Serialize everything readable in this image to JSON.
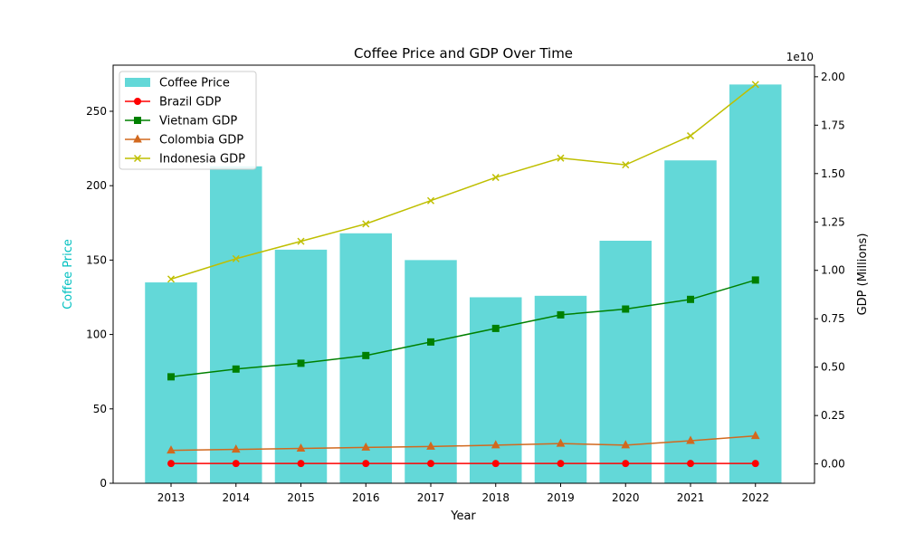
{
  "chart_data": {
    "type": "bar",
    "title": "Coffee Price and GDP Over Time",
    "xlabel": "Year",
    "ylabel_left": "Coffee Price",
    "ylabel_right": "GDP (Millions)",
    "right_axis_multiplier": "1e10",
    "categories": [
      "2013",
      "2014",
      "2015",
      "2016",
      "2017",
      "2018",
      "2019",
      "2020",
      "2021",
      "2022"
    ],
    "ylim_left": [
      0,
      281
    ],
    "left_ticks": [
      0,
      50,
      100,
      150,
      200,
      250
    ],
    "ylim_right": [
      -0.1,
      2.06
    ],
    "right_ticks": [
      "0.00",
      "0.25",
      "0.50",
      "0.75",
      "1.00",
      "1.25",
      "1.50",
      "1.75",
      "2.00"
    ],
    "grid": false,
    "legend_position": "top-left",
    "series": [
      {
        "name": "Coffee Price",
        "kind": "bar",
        "axis": "left",
        "color": "#63d8d8",
        "values": [
          135,
          213,
          157,
          168,
          150,
          125,
          126,
          163,
          217,
          268
        ]
      },
      {
        "name": "Brazil GDP",
        "kind": "line",
        "axis": "right",
        "color": "#ff0000",
        "marker": "circle",
        "values": [
          0.002,
          0.002,
          0.002,
          0.002,
          0.002,
          0.002,
          0.002,
          0.002,
          0.002,
          0.002
        ]
      },
      {
        "name": "Vietnam GDP",
        "kind": "line",
        "axis": "right",
        "color": "#008000",
        "marker": "square",
        "values": [
          0.45,
          0.49,
          0.52,
          0.56,
          0.63,
          0.7,
          0.77,
          0.8,
          0.85,
          0.95
        ]
      },
      {
        "name": "Colombia GDP",
        "kind": "line",
        "axis": "right",
        "color": "#d2691e",
        "marker": "triangle",
        "values": [
          0.07,
          0.075,
          0.08,
          0.085,
          0.09,
          0.097,
          0.105,
          0.097,
          0.12,
          0.145
        ]
      },
      {
        "name": "Indonesia GDP",
        "kind": "line",
        "axis": "right",
        "color": "#bfbf00",
        "marker": "x",
        "values": [
          0.955,
          1.06,
          1.15,
          1.24,
          1.36,
          1.48,
          1.58,
          1.545,
          1.695,
          1.96
        ]
      }
    ]
  }
}
